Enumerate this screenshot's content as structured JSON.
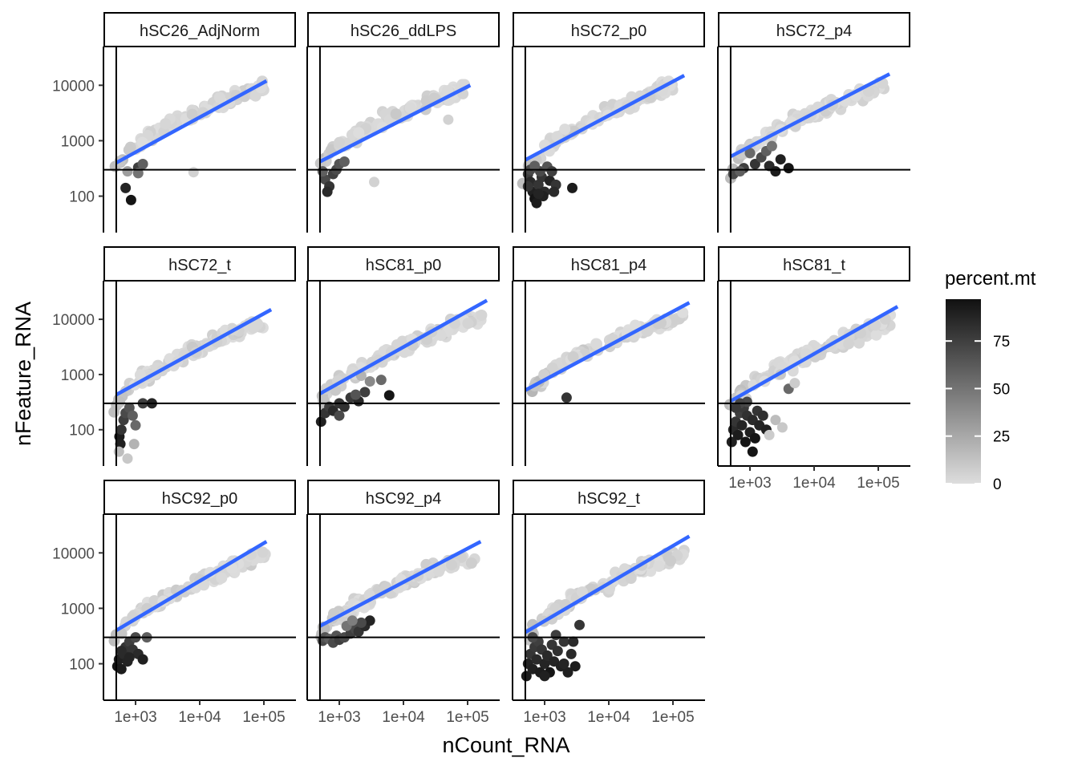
{
  "chart_data": {
    "type": "scatter",
    "x_label": "nCount_RNA",
    "y_label": "nFeature_RNA",
    "x_scale": "log10",
    "y_scale": "log10",
    "x_ticks": [
      {
        "value": 1000,
        "label": "1e+03"
      },
      {
        "value": 10000,
        "label": "1e+04"
      },
      {
        "value": 100000,
        "label": "1e+05"
      }
    ],
    "y_ticks": [
      {
        "value": 100,
        "label": "100"
      },
      {
        "value": 1000,
        "label": "1000"
      },
      {
        "value": 10000,
        "label": "10000"
      }
    ],
    "xlim": [
      316,
      316228
    ],
    "ylim": [
      22,
      50000
    ],
    "hline_y": 300,
    "vline_x": 500,
    "fit_line_color": "#3366FF",
    "point_low_color": "#DDDDDD",
    "point_high_color": "#111111",
    "legend": {
      "title": "percent.mt",
      "ticks": [
        {
          "value": 0,
          "label": "0"
        },
        {
          "value": 25,
          "label": "25"
        },
        {
          "value": 50,
          "label": "50"
        },
        {
          "value": 75,
          "label": "75"
        }
      ],
      "range": [
        0,
        97
      ]
    },
    "panels": [
      {
        "name": "hSC26_AdjNorm",
        "fit": [
          [
            500,
            400
          ],
          [
            110000,
            12000
          ]
        ],
        "xmin": 450,
        "xmax": 100000,
        "ymin": 250,
        "ymax": 9500,
        "spread": 0.09,
        "low": [
          [
            700,
            140,
            88
          ],
          [
            850,
            85,
            95
          ],
          [
            1100,
            330,
            75
          ],
          [
            1300,
            380,
            60
          ],
          [
            1100,
            260,
            50
          ],
          [
            750,
            280,
            30
          ],
          [
            8000,
            270,
            5
          ]
        ]
      },
      {
        "name": "hSC26_ddLPS",
        "fit": [
          [
            500,
            420
          ],
          [
            110000,
            10000
          ]
        ],
        "xmin": 450,
        "xmax": 90000,
        "ymin": 250,
        "ymax": 9000,
        "spread": 0.09,
        "low": [
          [
            600,
            200,
            70
          ],
          [
            700,
            150,
            80
          ],
          [
            650,
            120,
            85
          ],
          [
            800,
            250,
            75
          ],
          [
            900,
            300,
            70
          ],
          [
            1000,
            380,
            65
          ],
          [
            1200,
            420,
            60
          ],
          [
            550,
            280,
            60
          ],
          [
            3500,
            180,
            5
          ],
          [
            50000,
            2400,
            5
          ]
        ]
      },
      {
        "name": "hSC72_p0",
        "fit": [
          [
            500,
            450
          ],
          [
            150000,
            15000
          ]
        ],
        "xmin": 450,
        "xmax": 100000,
        "ymin": 200,
        "ymax": 10000,
        "spread": 0.09,
        "low": [
          [
            550,
            250,
            75
          ],
          [
            600,
            180,
            85
          ],
          [
            650,
            120,
            90
          ],
          [
            700,
            90,
            95
          ],
          [
            800,
            160,
            80
          ],
          [
            900,
            220,
            80
          ],
          [
            1000,
            120,
            85
          ],
          [
            750,
            75,
            92
          ],
          [
            1200,
            190,
            88
          ],
          [
            1500,
            160,
            80
          ],
          [
            2700,
            140,
            92
          ],
          [
            600,
            300,
            70
          ],
          [
            850,
            280,
            70
          ],
          [
            1100,
            340,
            65
          ],
          [
            1300,
            280,
            75
          ],
          [
            700,
            350,
            60
          ],
          [
            950,
            100,
            90
          ],
          [
            1400,
            120,
            85
          ],
          [
            550,
            150,
            80
          ],
          [
            800,
            110,
            88
          ]
        ]
      },
      {
        "name": "hSC72_p4",
        "fit": [
          [
            500,
            520
          ],
          [
            150000,
            16000
          ]
        ],
        "xmin": 500,
        "xmax": 130000,
        "ymin": 250,
        "ymax": 10000,
        "spread": 0.09,
        "low": [
          [
            550,
            250,
            70
          ],
          [
            800,
            320,
            75
          ],
          [
            1200,
            380,
            80
          ],
          [
            1500,
            500,
            70
          ],
          [
            2000,
            350,
            85
          ],
          [
            2500,
            280,
            92
          ],
          [
            3000,
            460,
            90
          ],
          [
            4000,
            320,
            95
          ],
          [
            1800,
            650,
            60
          ],
          [
            1000,
            600,
            55
          ],
          [
            700,
            280,
            60
          ],
          [
            2200,
            800,
            50
          ]
        ]
      },
      {
        "name": "hSC72_t",
        "fit": [
          [
            500,
            430
          ],
          [
            130000,
            15000
          ]
        ],
        "xmin": 450,
        "xmax": 100000,
        "ymin": 200,
        "ymax": 9000,
        "spread": 0.09,
        "low": [
          [
            560,
            75,
            92
          ],
          [
            580,
            55,
            90
          ],
          [
            600,
            100,
            80
          ],
          [
            650,
            150,
            75
          ],
          [
            700,
            200,
            70
          ],
          [
            800,
            250,
            65
          ],
          [
            900,
            180,
            60
          ],
          [
            1000,
            120,
            55
          ],
          [
            1300,
            300,
            75
          ],
          [
            1800,
            300,
            88
          ],
          [
            950,
            55,
            20
          ],
          [
            550,
            40,
            15
          ],
          [
            750,
            30,
            10
          ]
        ]
      },
      {
        "name": "hSC81_p0",
        "fit": [
          [
            500,
            450
          ],
          [
            200000,
            22000
          ]
        ],
        "xmin": 450,
        "xmax": 180000,
        "ymin": 200,
        "ymax": 12000,
        "spread": 0.1,
        "low": [
          [
            520,
            140,
            90
          ],
          [
            600,
            200,
            80
          ],
          [
            700,
            260,
            75
          ],
          [
            800,
            220,
            85
          ],
          [
            1000,
            300,
            80
          ],
          [
            1200,
            260,
            82
          ],
          [
            1500,
            380,
            78
          ],
          [
            2000,
            330,
            85
          ],
          [
            2500,
            480,
            75
          ],
          [
            1800,
            430,
            65
          ],
          [
            6000,
            420,
            95
          ],
          [
            4500,
            800,
            55
          ],
          [
            3000,
            750,
            40
          ],
          [
            2200,
            950,
            20
          ],
          [
            1000,
            180,
            70
          ]
        ]
      },
      {
        "name": "hSC81_p4",
        "fit": [
          [
            500,
            520
          ],
          [
            180000,
            20000
          ]
        ],
        "xmin": 600,
        "xmax": 150000,
        "ymin": 400,
        "ymax": 12000,
        "spread": 0.08,
        "low": [
          [
            2200,
            380,
            80
          ]
        ]
      },
      {
        "name": "hSC81_t",
        "fit": [
          [
            500,
            330
          ],
          [
            200000,
            17000
          ]
        ],
        "xmin": 480,
        "xmax": 160000,
        "ymin": 200,
        "ymax": 9000,
        "spread": 0.11,
        "low": [
          [
            520,
            60,
            90
          ],
          [
            550,
            100,
            85
          ],
          [
            600,
            140,
            80
          ],
          [
            650,
            80,
            92
          ],
          [
            700,
            200,
            75
          ],
          [
            750,
            120,
            88
          ],
          [
            800,
            250,
            78
          ],
          [
            850,
            60,
            95
          ],
          [
            900,
            180,
            82
          ],
          [
            1000,
            90,
            90
          ],
          [
            1100,
            150,
            85
          ],
          [
            1200,
            70,
            95
          ],
          [
            1300,
            220,
            80
          ],
          [
            1400,
            120,
            88
          ],
          [
            1600,
            180,
            82
          ],
          [
            1800,
            100,
            90
          ],
          [
            900,
            320,
            70
          ],
          [
            700,
            300,
            72
          ],
          [
            600,
            250,
            78
          ],
          [
            1100,
            40,
            95
          ],
          [
            2500,
            150,
            15
          ],
          [
            3200,
            110,
            10
          ],
          [
            2000,
            80,
            8
          ],
          [
            4000,
            550,
            55
          ],
          [
            3000,
            1000,
            10
          ],
          [
            5000,
            700,
            8
          ]
        ]
      },
      {
        "name": "hSC92_p0",
        "fit": [
          [
            500,
            400
          ],
          [
            110000,
            16000
          ]
        ],
        "xmin": 450,
        "xmax": 110000,
        "ymin": 200,
        "ymax": 10000,
        "spread": 0.09,
        "low": [
          [
            520,
            90,
            95
          ],
          [
            550,
            120,
            90
          ],
          [
            600,
            80,
            92
          ],
          [
            650,
            150,
            85
          ],
          [
            700,
            200,
            80
          ],
          [
            750,
            110,
            88
          ],
          [
            800,
            250,
            75
          ],
          [
            900,
            180,
            80
          ],
          [
            1000,
            300,
            70
          ],
          [
            1100,
            150,
            85
          ],
          [
            1300,
            120,
            90
          ],
          [
            1500,
            300,
            60
          ],
          [
            800,
            130,
            88
          ],
          [
            600,
            170,
            85
          ]
        ]
      },
      {
        "name": "hSC92_p4",
        "fit": [
          [
            500,
            480
          ],
          [
            160000,
            16000
          ]
        ],
        "xmin": 500,
        "xmax": 150000,
        "ymin": 250,
        "ymax": 10000,
        "spread": 0.09,
        "low": [
          [
            550,
            260,
            70
          ],
          [
            600,
            300,
            65
          ],
          [
            700,
            280,
            60
          ],
          [
            800,
            240,
            70
          ],
          [
            900,
            320,
            65
          ],
          [
            1000,
            270,
            75
          ],
          [
            1200,
            300,
            70
          ],
          [
            1500,
            350,
            75
          ],
          [
            1800,
            420,
            70
          ],
          [
            2000,
            380,
            80
          ],
          [
            2500,
            480,
            85
          ],
          [
            3000,
            600,
            88
          ],
          [
            2200,
            550,
            70
          ],
          [
            1300,
            480,
            50
          ],
          [
            1600,
            600,
            45
          ]
        ]
      },
      {
        "name": "hSC92_t",
        "fit": [
          [
            500,
            370
          ],
          [
            180000,
            20000
          ]
        ],
        "xmin": 500,
        "xmax": 150000,
        "ymin": 200,
        "ymax": 10000,
        "spread": 0.09,
        "low": [
          [
            520,
            60,
            92
          ],
          [
            550,
            100,
            88
          ],
          [
            600,
            150,
            80
          ],
          [
            650,
            80,
            90
          ],
          [
            700,
            200,
            78
          ],
          [
            750,
            120,
            85
          ],
          [
            800,
            250,
            75
          ],
          [
            850,
            70,
            92
          ],
          [
            900,
            180,
            80
          ],
          [
            1000,
            100,
            88
          ],
          [
            1100,
            140,
            85
          ],
          [
            1200,
            70,
            95
          ],
          [
            1300,
            220,
            80
          ],
          [
            1400,
            110,
            88
          ],
          [
            1600,
            170,
            82
          ],
          [
            1800,
            90,
            90
          ],
          [
            2000,
            250,
            80
          ],
          [
            2300,
            70,
            90
          ],
          [
            2600,
            150,
            85
          ],
          [
            3000,
            90,
            92
          ],
          [
            3500,
            500,
            80
          ],
          [
            2800,
            250,
            85
          ],
          [
            650,
            300,
            70
          ],
          [
            1500,
            330,
            75
          ],
          [
            2000,
            100,
            88
          ],
          [
            1000,
            60,
            90
          ]
        ]
      }
    ]
  }
}
